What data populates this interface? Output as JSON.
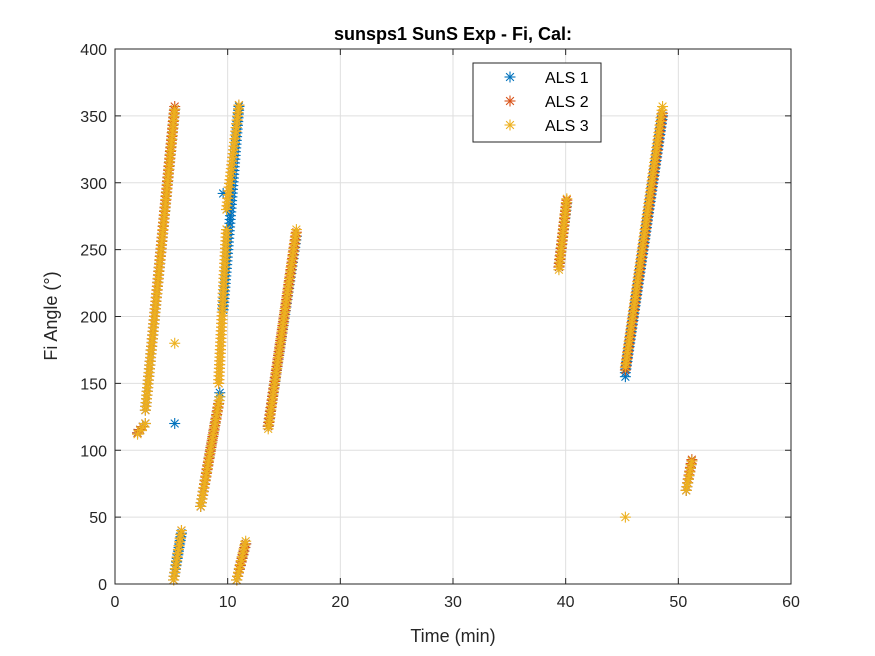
{
  "chart_data": {
    "type": "scatter",
    "title": "sunsps1 SunS Exp - Fi, Cal:",
    "xlabel": "Time (min)",
    "ylabel": "Fi Angle (°)",
    "xlim": [
      0,
      60
    ],
    "ylim": [
      0,
      400
    ],
    "xticks": [
      0,
      10,
      20,
      30,
      40,
      50,
      60
    ],
    "yticks": [
      0,
      50,
      100,
      150,
      200,
      250,
      300,
      350,
      400
    ],
    "grid": true,
    "legend_position": "top-right",
    "marker": "asterisk",
    "series": [
      {
        "name": "ALS 1",
        "color": "#0072BD",
        "segments": [
          {
            "x0": 2.0,
            "y0": 113,
            "x1": 2.7,
            "y1": 120
          },
          {
            "x0": 2.7,
            "y0": 130,
            "x1": 5.3,
            "y1": 355
          },
          {
            "x0": 5.2,
            "y0": 3,
            "x1": 5.9,
            "y1": 38
          },
          {
            "x0": 7.6,
            "y0": 58,
            "x1": 9.3,
            "y1": 140
          },
          {
            "x0": 9.6,
            "y0": 205,
            "x1": 11.0,
            "y1": 357
          },
          {
            "x0": 10.8,
            "y0": 3,
            "x1": 11.6,
            "y1": 30
          },
          {
            "x0": 13.6,
            "y0": 118,
            "x1": 16.1,
            "y1": 260
          },
          {
            "x0": 39.4,
            "y0": 237,
            "x1": 40.1,
            "y1": 285
          },
          {
            "x0": 45.3,
            "y0": 158,
            "x1": 48.6,
            "y1": 350
          },
          {
            "x0": 50.7,
            "y0": 70,
            "x1": 51.2,
            "y1": 92
          }
        ],
        "points": [
          {
            "x": 5.3,
            "y": 120
          },
          {
            "x": 9.3,
            "y": 143
          },
          {
            "x": 9.6,
            "y": 292
          },
          {
            "x": 45.3,
            "y": 155
          }
        ]
      },
      {
        "name": "ALS 2",
        "color": "#D95319",
        "segments": [
          {
            "x0": 2.0,
            "y0": 113,
            "x1": 2.7,
            "y1": 120
          },
          {
            "x0": 2.7,
            "y0": 130,
            "x1": 5.3,
            "y1": 357
          },
          {
            "x0": 5.2,
            "y0": 3,
            "x1": 5.9,
            "y1": 40
          },
          {
            "x0": 7.6,
            "y0": 58,
            "x1": 9.2,
            "y1": 135
          },
          {
            "x0": 9.2,
            "y0": 150,
            "x1": 9.9,
            "y1": 265
          },
          {
            "x0": 9.9,
            "y0": 280,
            "x1": 11.0,
            "y1": 358
          },
          {
            "x0": 10.8,
            "y0": 3,
            "x1": 11.6,
            "y1": 30
          },
          {
            "x0": 13.6,
            "y0": 118,
            "x1": 16.1,
            "y1": 263
          },
          {
            "x0": 39.4,
            "y0": 237,
            "x1": 40.1,
            "y1": 287
          },
          {
            "x0": 45.3,
            "y0": 160,
            "x1": 48.6,
            "y1": 352
          },
          {
            "x0": 50.7,
            "y0": 70,
            "x1": 51.2,
            "y1": 93
          }
        ],
        "points": []
      },
      {
        "name": "ALS 3",
        "color": "#EDB120",
        "segments": [
          {
            "x0": 2.0,
            "y0": 112,
            "x1": 2.7,
            "y1": 120
          },
          {
            "x0": 2.7,
            "y0": 130,
            "x1": 5.3,
            "y1": 355
          },
          {
            "x0": 5.2,
            "y0": 3,
            "x1": 5.9,
            "y1": 40
          },
          {
            "x0": 7.6,
            "y0": 58,
            "x1": 9.3,
            "y1": 140
          },
          {
            "x0": 9.2,
            "y0": 150,
            "x1": 9.9,
            "y1": 265
          },
          {
            "x0": 9.9,
            "y0": 280,
            "x1": 11.0,
            "y1": 358
          },
          {
            "x0": 10.8,
            "y0": 3,
            "x1": 11.6,
            "y1": 32
          },
          {
            "x0": 13.6,
            "y0": 116,
            "x1": 16.1,
            "y1": 265
          },
          {
            "x0": 39.4,
            "y0": 235,
            "x1": 40.1,
            "y1": 288
          },
          {
            "x0": 45.3,
            "y0": 162,
            "x1": 48.6,
            "y1": 357
          },
          {
            "x0": 50.7,
            "y0": 70,
            "x1": 51.2,
            "y1": 92
          }
        ],
        "points": [
          {
            "x": 5.3,
            "y": 180
          },
          {
            "x": 45.3,
            "y": 50
          }
        ]
      }
    ]
  }
}
